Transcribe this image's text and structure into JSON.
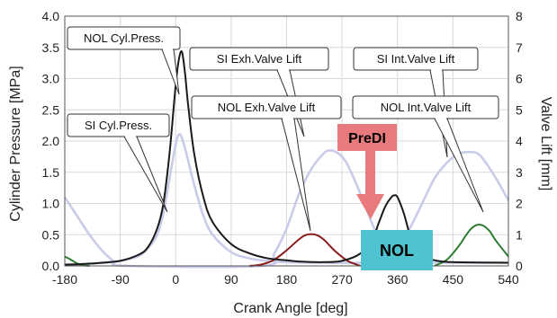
{
  "chart_data": {
    "type": "line",
    "xlabel": "Crank Angle [deg]",
    "ylabel": "Cylinder Pressure [MPa]",
    "y2label": "Valve Lift [mm]",
    "xlim": [
      -180,
      540
    ],
    "ylim": [
      0,
      4.0
    ],
    "y2lim": [
      0,
      8
    ],
    "xticks": [
      "-180",
      "-90",
      "0",
      "90",
      "180",
      "270",
      "360",
      "450",
      "540"
    ],
    "yticks": [
      "0.0",
      "0.5",
      "1.0",
      "1.5",
      "2.0",
      "2.5",
      "3.0",
      "3.5",
      "4.0"
    ],
    "y2ticks": [
      "0",
      "1",
      "2",
      "3",
      "4",
      "5",
      "6",
      "7",
      "8"
    ],
    "grid": true,
    "series": [
      {
        "name": "NOL Cyl.Press.",
        "axis": "left",
        "color": "#1a1a1a",
        "x": [
          -180,
          -150,
          -120,
          -90,
          -60,
          -45,
          -30,
          -20,
          -10,
          0,
          5,
          10,
          15,
          20,
          30,
          45,
          60,
          90,
          120,
          150,
          180,
          200,
          240,
          270,
          300,
          320,
          330,
          340,
          350,
          355,
          360,
          370,
          380,
          390,
          400,
          420,
          450,
          540
        ],
        "y": [
          0.02,
          0.03,
          0.05,
          0.08,
          0.18,
          0.3,
          0.6,
          1.0,
          1.8,
          2.9,
          3.3,
          3.43,
          3.1,
          2.6,
          1.8,
          1.1,
          0.7,
          0.35,
          0.2,
          0.12,
          0.09,
          0.07,
          0.06,
          0.08,
          0.2,
          0.45,
          0.7,
          0.95,
          1.1,
          1.13,
          1.1,
          0.85,
          0.5,
          0.27,
          0.15,
          0.09,
          0.06,
          0.05
        ]
      },
      {
        "name": "SI Cyl.Press.",
        "axis": "left",
        "color": "#c8cce8",
        "x": [
          -180,
          -150,
          -120,
          -90,
          -60,
          -45,
          -30,
          -20,
          -10,
          0,
          5,
          10,
          20,
          30,
          45,
          60,
          90,
          120,
          150,
          180,
          240,
          300,
          360,
          420,
          480,
          540
        ],
        "y": [
          0.02,
          0.03,
          0.05,
          0.08,
          0.16,
          0.28,
          0.5,
          0.85,
          1.4,
          1.95,
          2.1,
          2.05,
          1.7,
          1.3,
          0.8,
          0.5,
          0.22,
          0.12,
          0.08,
          0.06,
          0.05,
          0.05,
          0.05,
          0.05,
          0.05,
          0.05
        ]
      },
      {
        "name": "SI Exh.Valve Lift",
        "axis": "right",
        "color": "#c8cce8",
        "x": [
          -180,
          -160,
          -140,
          -120,
          -100,
          -80,
          140,
          160,
          180,
          200,
          220,
          240,
          250,
          260,
          270,
          280,
          300,
          320,
          340,
          360
        ],
        "y": [
          2.2,
          1.6,
          1.0,
          0.5,
          0.15,
          0,
          0,
          0.4,
          1.2,
          2.3,
          3.1,
          3.6,
          3.7,
          3.65,
          3.5,
          3.2,
          2.3,
          1.3,
          0.5,
          0
        ]
      },
      {
        "name": "SI Int.Valve Lift",
        "axis": "right",
        "color": "#c8cce8",
        "x": [
          330,
          360,
          380,
          400,
          420,
          440,
          460,
          480,
          490,
          500,
          520,
          540
        ],
        "y": [
          0,
          0.5,
          1.2,
          2.0,
          2.8,
          3.3,
          3.6,
          3.65,
          3.6,
          3.4,
          2.8,
          2.1
        ]
      },
      {
        "name": "NOL Exh.Valve Lift",
        "axis": "right",
        "color": "#8b1a1a",
        "x": [
          120,
          140,
          160,
          180,
          200,
          210,
          220,
          230,
          240,
          250,
          260,
          280,
          300
        ],
        "y": [
          0,
          0.05,
          0.2,
          0.5,
          0.85,
          0.98,
          1.02,
          0.98,
          0.85,
          0.65,
          0.45,
          0.15,
          0
        ]
      },
      {
        "name": "NOL Int.Valve Lift",
        "axis": "right",
        "color": "#2e7d32",
        "x": [
          420,
          440,
          460,
          470,
          480,
          490,
          500,
          510,
          520,
          540
        ],
        "y": [
          0,
          0.2,
          0.65,
          0.95,
          1.2,
          1.32,
          1.28,
          1.1,
          0.8,
          0.3
        ]
      },
      {
        "name": "",
        "axis": "right",
        "color": "#2e7d32",
        "x": [
          -180,
          -170,
          -160,
          -150,
          -140
        ],
        "y": [
          0.3,
          0.2,
          0.08,
          0.02,
          0
        ]
      }
    ]
  },
  "callouts": [
    {
      "text": "NOL Cyl.Press."
    },
    {
      "text": "SI Cyl.Press."
    },
    {
      "text": "SI Exh.Valve Lift"
    },
    {
      "text": "NOL Exh.Valve Lift"
    },
    {
      "text": "SI Int.Valve Lift"
    },
    {
      "text": "NOL Int.Valve Lift"
    }
  ],
  "markers": {
    "predi_label": "PreDI",
    "nol_label": "NOL",
    "predi_color": "#e87a7e",
    "nol_color": "#4fc3d0"
  }
}
